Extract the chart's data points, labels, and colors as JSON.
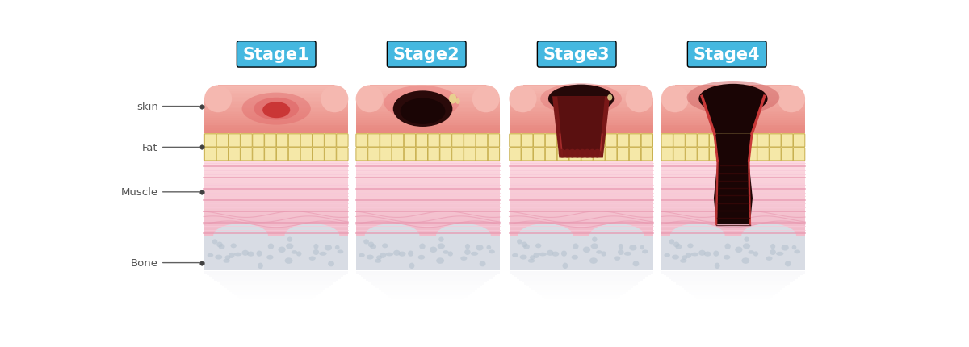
{
  "bg_color": "#ffffff",
  "stages": [
    "Stage1",
    "Stage2",
    "Stage3",
    "Stage4"
  ],
  "stage_label_bg": "#45b8e0",
  "stage_label_color": "#ffffff",
  "stage_label_fontsize": 15,
  "label_texts": [
    "skin",
    "Fat",
    "Muscle",
    "Bone"
  ],
  "label_color": "#555555",
  "colors": {
    "skin_light": "#f5b8b0",
    "skin_mid": "#f0a090",
    "skin_deep": "#e88880",
    "skin_darker": "#d87070",
    "fat_bg": "#f0d888",
    "fat_cell": "#f5e8a8",
    "fat_cell_border": "#c8b050",
    "muscle_light": "#fcd8e0",
    "muscle_mid": "#f0b8c8",
    "muscle_stripe": "#e898b0",
    "muscle_stripe2": "#f8c8d8",
    "bone": "#d8dce4",
    "bone_dark": "#c0c8d4",
    "bone_dot": "#b8c4d0",
    "wound1_center": "#c83030",
    "wound1_outer": "#e06868",
    "wound2_dark": "#2a0a0a",
    "wound2_mid": "#6a1818",
    "wound3_dark": "#250808",
    "wound3_mid": "#7a1818",
    "wound3_light": "#b03030",
    "wound4_dark": "#1a0505",
    "wound4_mid": "#5a1010",
    "red_rim": "#c83838",
    "fluid": "#e8d890",
    "shadow1": "#e8e8f0",
    "shadow2": "#f0f0f8"
  }
}
